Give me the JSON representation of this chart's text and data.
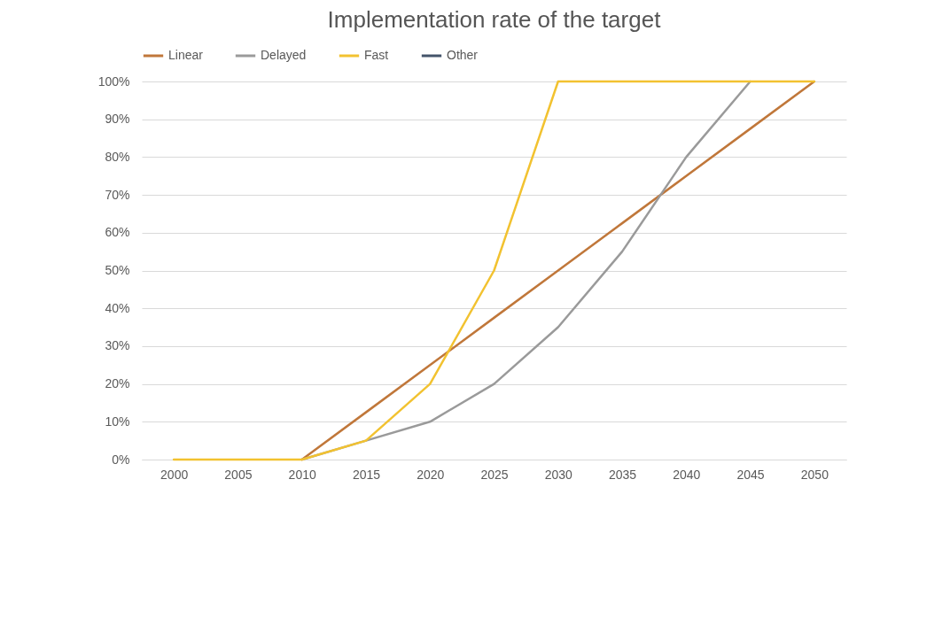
{
  "chart_data": {
    "type": "line",
    "title": "Implementation rate of the target",
    "categories": [
      "2000",
      "2005",
      "2010",
      "2015",
      "2020",
      "2025",
      "2030",
      "2035",
      "2040",
      "2045",
      "2050"
    ],
    "series": [
      {
        "name": "Linear",
        "color": "#c0773a",
        "values": [
          null,
          null,
          0,
          12.5,
          25,
          37.5,
          50,
          62.5,
          75,
          87.5,
          100
        ]
      },
      {
        "name": "Delayed",
        "color": "#9a9a9a",
        "values": [
          null,
          null,
          0,
          5,
          10,
          20,
          35,
          55,
          80,
          100,
          null
        ]
      },
      {
        "name": "Fast",
        "color": "#f2c230",
        "values": [
          0,
          0,
          0,
          5,
          20,
          50,
          100,
          100,
          100,
          100,
          100
        ]
      },
      {
        "name": "Other",
        "color": "#44546a",
        "values": [
          null,
          null,
          null,
          null,
          null,
          null,
          null,
          null,
          null,
          null,
          null
        ]
      }
    ],
    "ylim": [
      0,
      100
    ],
    "yticks": [
      {
        "value": 0,
        "label": "0%"
      },
      {
        "value": 10,
        "label": "10%"
      },
      {
        "value": 20,
        "label": "20%"
      },
      {
        "value": 30,
        "label": "30%"
      },
      {
        "value": 40,
        "label": "40%"
      },
      {
        "value": 50,
        "label": "50%"
      },
      {
        "value": 60,
        "label": "60%"
      },
      {
        "value": 70,
        "label": "70%"
      },
      {
        "value": 80,
        "label": "80%"
      },
      {
        "value": 90,
        "label": "90%"
      },
      {
        "value": 100,
        "label": "100%"
      }
    ],
    "grid": "y",
    "legend": "top",
    "marker": "none",
    "line_style": "solid"
  }
}
